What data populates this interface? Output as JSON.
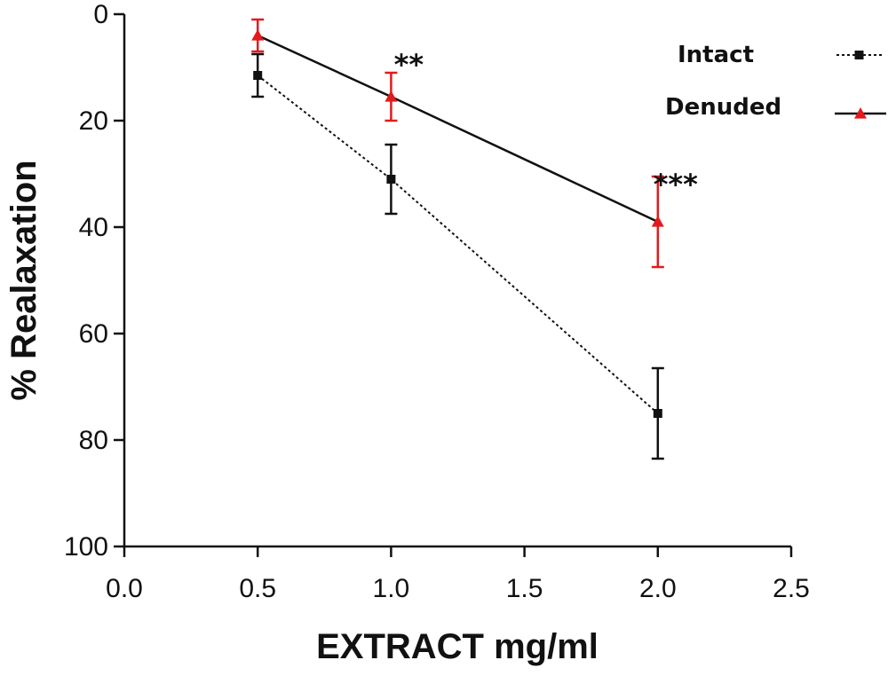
{
  "chart_data": {
    "type": "line",
    "xlabel": "EXTRACT mg/ml",
    "ylabel": "% Realaxation",
    "xlim": [
      0.0,
      2.5
    ],
    "ylim": [
      0,
      100
    ],
    "y_inverted": true,
    "x_ticks": [
      "0.0",
      "0.5",
      "1.0",
      "1.5",
      "2.0",
      "2.5"
    ],
    "y_ticks": [
      "0",
      "20",
      "40",
      "60",
      "80",
      "100"
    ],
    "grid": false,
    "legend_position": "top-right",
    "series": [
      {
        "name": "Intact",
        "color": "#111111",
        "marker": "square",
        "line": "dotted",
        "x": [
          0.5,
          1.0,
          2.0
        ],
        "y": [
          11.5,
          31,
          75
        ],
        "err": [
          4,
          6.5,
          8.5
        ]
      },
      {
        "name": "Denuded",
        "color": "#e31a1c",
        "marker": "triangle",
        "line": "solid",
        "x": [
          0.5,
          1.0,
          2.0
        ],
        "y": [
          4,
          15.5,
          39
        ],
        "err": [
          3,
          4.5,
          8.5
        ]
      }
    ],
    "annotations": [
      {
        "text": "**",
        "x": 1.0,
        "y": 8
      },
      {
        "text": "***",
        "x": 2.0,
        "y": 30.5
      }
    ]
  }
}
